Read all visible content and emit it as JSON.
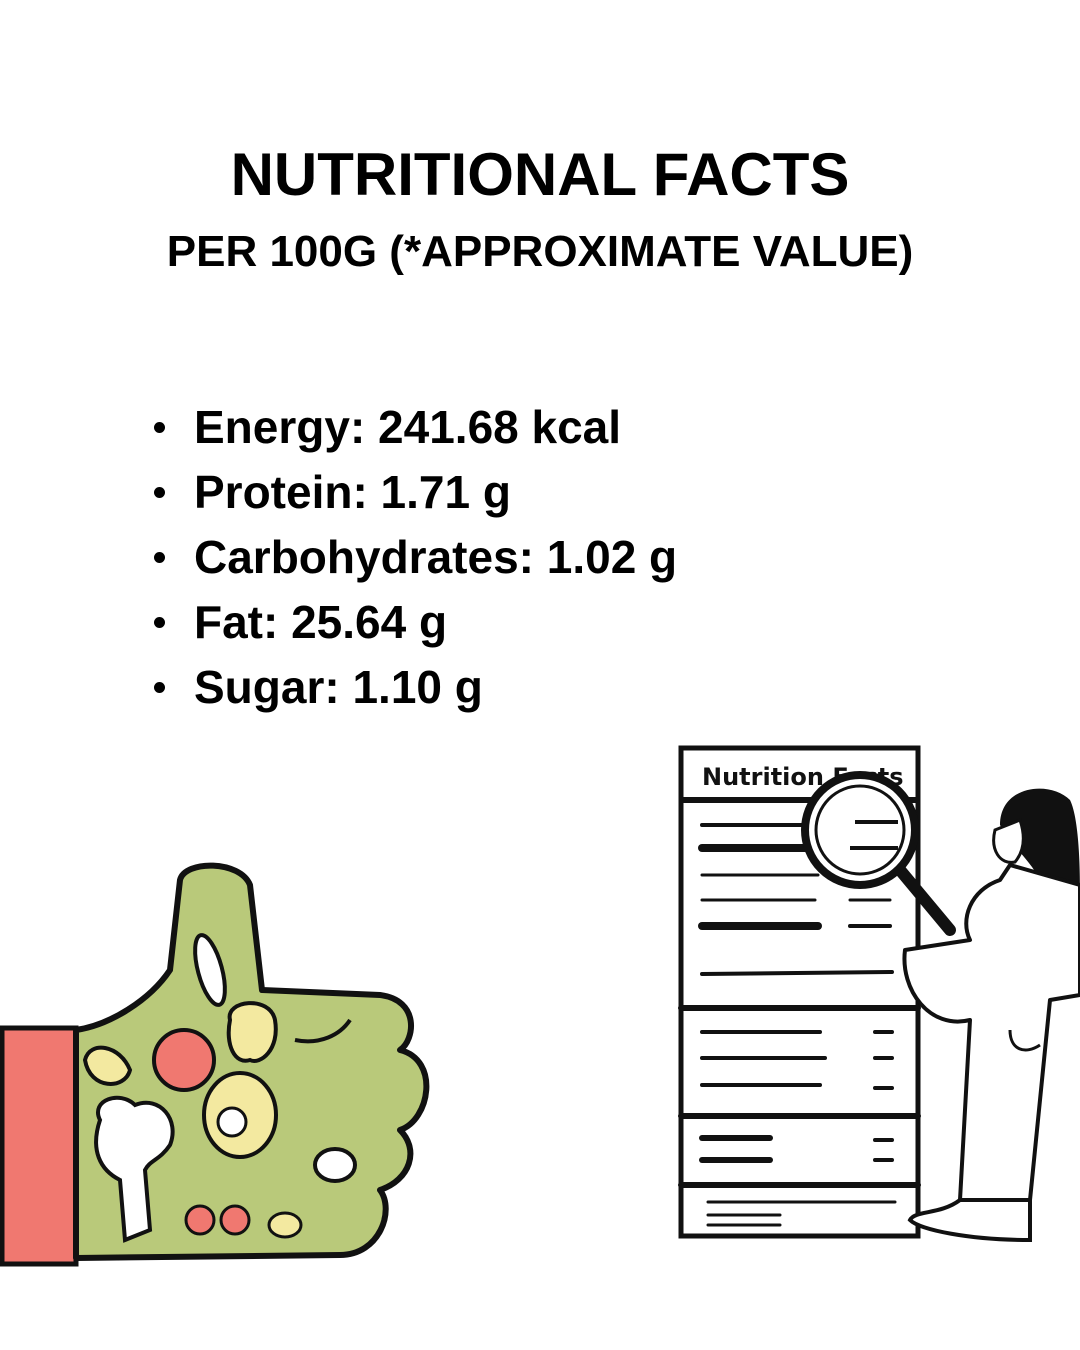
{
  "header": {
    "title": "NUTRITIONAL FACTS",
    "subtitle": "PER 100G (*APPROXIMATE VALUE)"
  },
  "facts": [
    {
      "text": "Energy: 241.68 kcal"
    },
    {
      "text": "Protein: 1.71 g"
    },
    {
      "text": "Carbohydrates: 1.02 g"
    },
    {
      "text": "Fat: 25.64 g"
    },
    {
      "text": "Sugar: 1.10 g"
    }
  ],
  "illustrations": {
    "thumbs_up": {
      "icon": "vegetable-thumbs-up-illustration",
      "hand_color": "#b9c97a",
      "sleeve_color": "#f07870"
    },
    "label_reader": {
      "icon": "person-magnifier-nutrition-label-illustration",
      "label_heading": "Nutrition Facts"
    }
  }
}
